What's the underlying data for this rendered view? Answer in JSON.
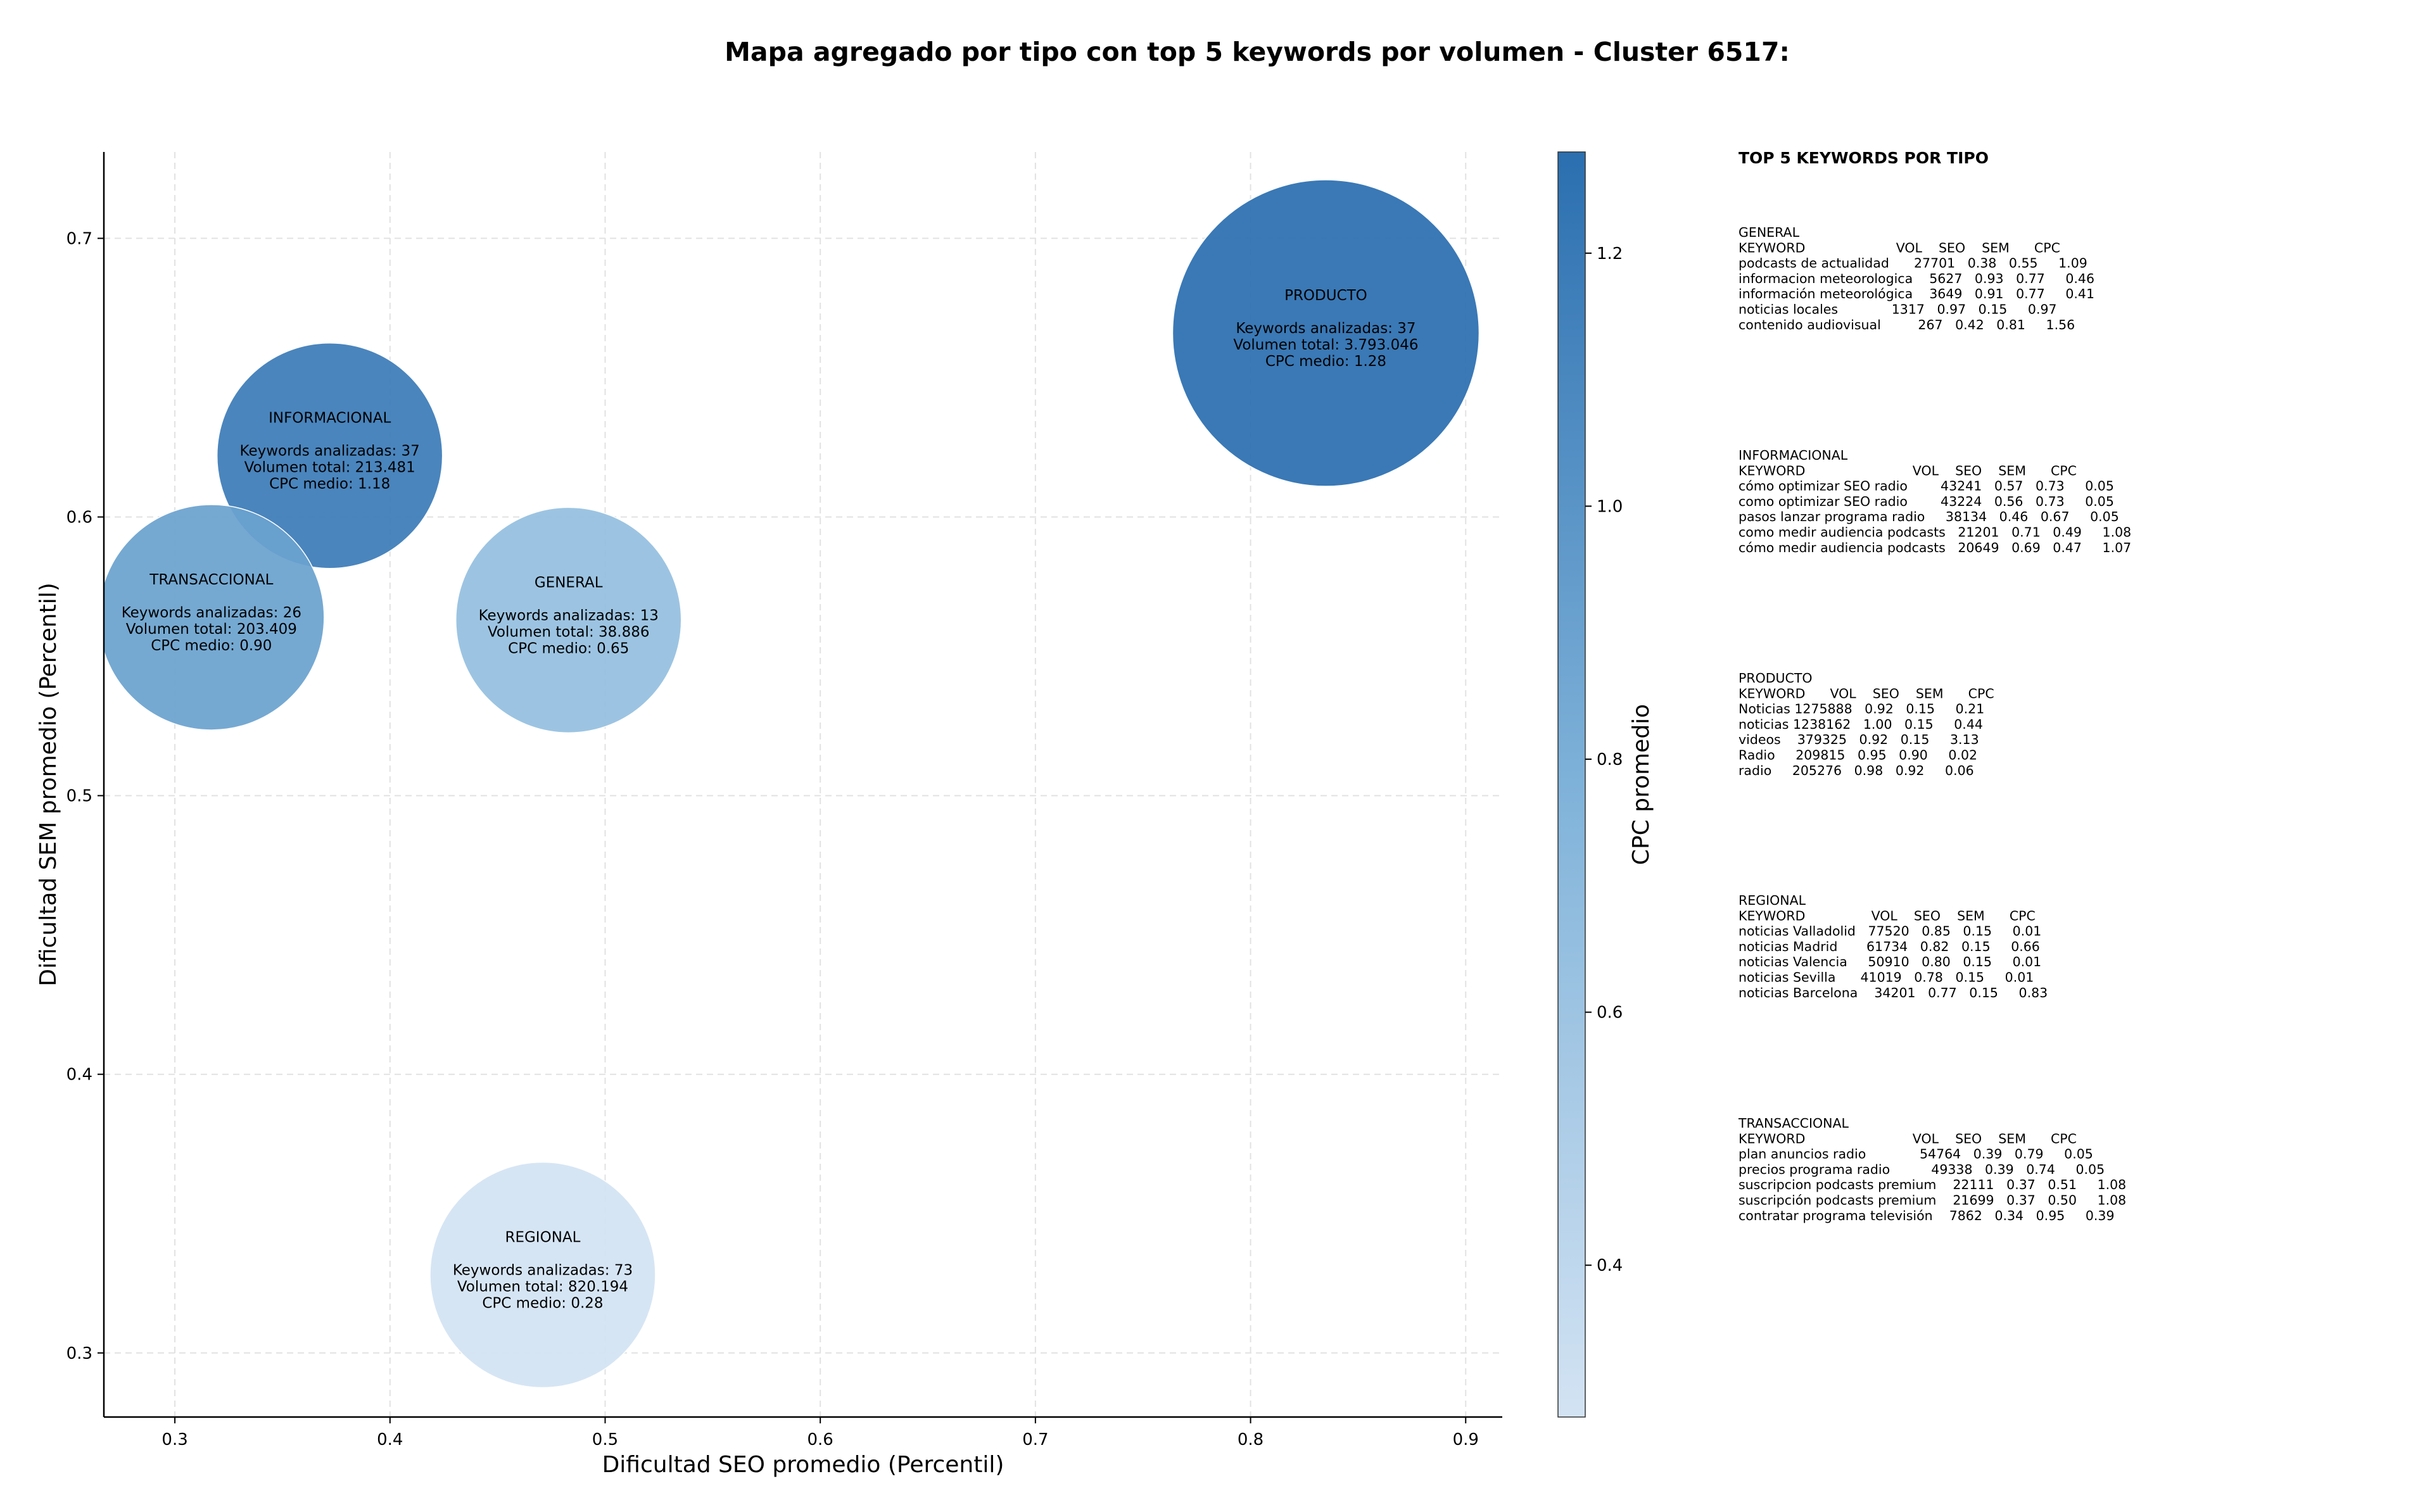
{
  "chart_data": {
    "type": "scatter",
    "title": "Mapa agregado por tipo con top 5 keywords por volumen - Cluster 6517:",
    "xlabel": "Dificultad SEO promedio (Percentil)",
    "ylabel": "Dificultad SEM promedio (Percentil)",
    "xlim": [
      0.267,
      0.917
    ],
    "ylim": [
      0.277,
      0.731
    ],
    "xticks": [
      0.3,
      0.4,
      0.5,
      0.6,
      0.7,
      0.8,
      0.9
    ],
    "xtick_labels": [
      "0.3",
      "0.4",
      "0.5",
      "0.6",
      "0.7",
      "0.8",
      "0.9"
    ],
    "yticks": [
      0.3,
      0.4,
      0.5,
      0.6,
      0.7
    ],
    "ytick_labels": [
      "0.3",
      "0.4",
      "0.5",
      "0.6",
      "0.7"
    ],
    "grid": true,
    "colorbar": {
      "label": "CPC promedio",
      "min": 0.28,
      "max": 1.28,
      "ticks": [
        0.4,
        0.6,
        0.8,
        1.0,
        1.2
      ],
      "tick_labels": [
        "0.4",
        "0.6",
        "0.8",
        "1.0",
        "1.2"
      ],
      "color_low": "#d3e3f3",
      "color_high": "#2b6fb0"
    },
    "points": [
      {
        "name": "PRODUCTO",
        "x": 0.835,
        "y": 0.666,
        "volume": 3793046,
        "keywords_line": "Keywords analizadas: 37",
        "volume_line": "Volumen total: 3.793.046",
        "cpc_line": "CPC medio: 1.28",
        "cpc": 1.28
      },
      {
        "name": "INFORMACIONAL",
        "x": 0.372,
        "y": 0.622,
        "volume": 213481,
        "keywords_line": "Keywords analizadas: 37",
        "volume_line": "Volumen total: 213.481",
        "cpc_line": "CPC medio: 1.18",
        "cpc": 1.18
      },
      {
        "name": "TRANSACCIONAL",
        "x": 0.317,
        "y": 0.564,
        "volume": 203409,
        "keywords_line": "Keywords analizadas: 26",
        "volume_line": "Volumen total: 203.409",
        "cpc_line": "CPC medio: 0.90",
        "cpc": 0.9
      },
      {
        "name": "GENERAL",
        "x": 0.483,
        "y": 0.563,
        "volume": 38886,
        "keywords_line": "Keywords analizadas: 13",
        "volume_line": "Volumen total: 38.886",
        "cpc_line": "CPC medio: 0.65",
        "cpc": 0.65
      },
      {
        "name": "REGIONAL",
        "x": 0.471,
        "y": 0.328,
        "volume": 820194,
        "keywords_line": "Keywords analizadas: 73",
        "volume_line": "Volumen total: 820.194",
        "cpc_line": "CPC medio: 0.28",
        "cpc": 0.28
      }
    ]
  },
  "side_panel": {
    "title": "TOP 5 KEYWORDS POR TIPO",
    "sections": [
      {
        "name": "GENERAL",
        "header": "KEYWORD                      VOL    SEO    SEM      CPC",
        "rows": [
          "podcasts de actualidad      27701   0.38   0.55     1.09",
          "informacion meteorologica    5627   0.93   0.77     0.46",
          "información meteorológica    3649   0.91   0.77     0.41",
          "noticias locales             1317   0.97   0.15     0.97",
          "contenido audiovisual         267   0.42   0.81     1.56"
        ]
      },
      {
        "name": "INFORMACIONAL",
        "header": "KEYWORD                          VOL    SEO    SEM      CPC",
        "rows": [
          "cómo optimizar SEO radio        43241   0.57   0.73     0.05",
          "como optimizar SEO radio        43224   0.56   0.73     0.05",
          "pasos lanzar programa radio     38134   0.46   0.67     0.05",
          "como medir audiencia podcasts   21201   0.71   0.49     1.08",
          "cómo medir audiencia podcasts   20649   0.69   0.47     1.07"
        ]
      },
      {
        "name": "PRODUCTO",
        "header": "KEYWORD      VOL    SEO    SEM      CPC",
        "rows": [
          "Noticias 1275888   0.92   0.15     0.21",
          "noticias 1238162   1.00   0.15     0.44",
          "videos    379325   0.92   0.15     3.13",
          "Radio     209815   0.95   0.90     0.02",
          "radio     205276   0.98   0.92     0.06"
        ]
      },
      {
        "name": "REGIONAL",
        "header": "KEYWORD                VOL    SEO    SEM      CPC",
        "rows": [
          "noticias Valladolid   77520   0.85   0.15     0.01",
          "noticias Madrid       61734   0.82   0.15     0.66",
          "noticias Valencia     50910   0.80   0.15     0.01",
          "noticias Sevilla      41019   0.78   0.15     0.01",
          "noticias Barcelona    34201   0.77   0.15     0.83"
        ]
      },
      {
        "name": "TRANSACCIONAL",
        "header": "KEYWORD                          VOL    SEO    SEM      CPC",
        "rows": [
          "plan anuncios radio             54764   0.39   0.79     0.05",
          "precios programa radio          49338   0.39   0.74     0.05",
          "suscripcion podcasts premium    22111   0.37   0.51     1.08",
          "suscripción podcasts premium    21699   0.37   0.50     1.08",
          "contratar programa televisión    7862   0.34   0.95     0.39"
        ]
      }
    ]
  }
}
